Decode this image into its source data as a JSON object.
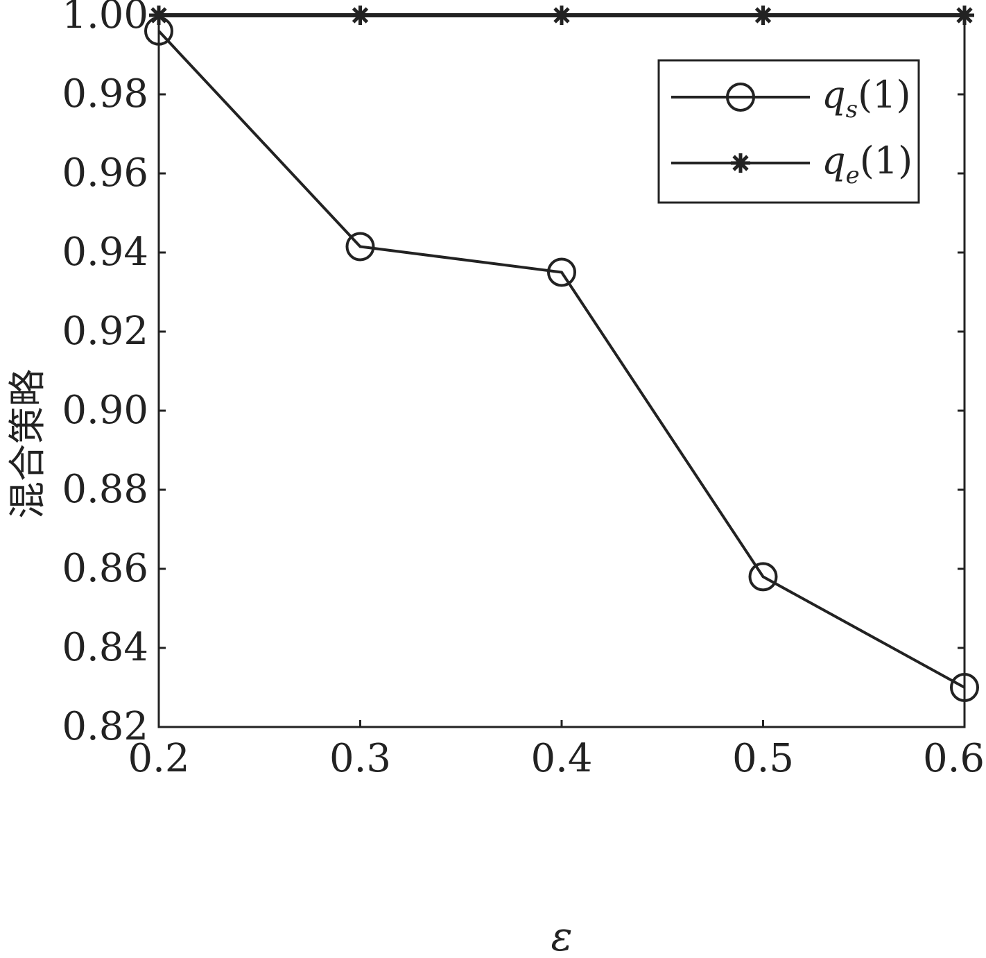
{
  "chart_data": {
    "type": "line",
    "title": "",
    "xlabel": "ε",
    "ylabel": "混合策略",
    "xlim": [
      0.2,
      0.6
    ],
    "ylim": [
      0.82,
      1.0
    ],
    "xticks": [
      0.2,
      0.3,
      0.4,
      0.5,
      0.6
    ],
    "xtick_labels": [
      "0.2",
      "0.3",
      "0.4",
      "0.5",
      "0.6"
    ],
    "yticks": [
      0.82,
      0.84,
      0.86,
      0.88,
      0.9,
      0.92,
      0.94,
      0.96,
      0.98,
      1.0
    ],
    "ytick_labels": [
      "0.82",
      "0.84",
      "0.86",
      "0.88",
      "0.90",
      "0.92",
      "0.94",
      "0.96",
      "0.98",
      "1.00"
    ],
    "x": [
      0.2,
      0.3,
      0.4,
      0.5,
      0.6
    ],
    "grid": false,
    "legend_position": "top-right",
    "series": [
      {
        "name": "q_s(1)",
        "label_main": "q",
        "label_sub": "s",
        "label_suffix": "(1)",
        "marker": "circle",
        "values": [
          0.996,
          0.9415,
          0.935,
          0.858,
          0.83
        ]
      },
      {
        "name": "q_e(1)",
        "label_main": "q",
        "label_sub": "e",
        "label_suffix": "(1)",
        "marker": "star",
        "values": [
          1.0,
          1.0,
          1.0,
          1.0,
          1.0
        ]
      }
    ],
    "colors": {
      "line": "#222222",
      "axis": "#222222",
      "background": "#ffffff"
    }
  }
}
